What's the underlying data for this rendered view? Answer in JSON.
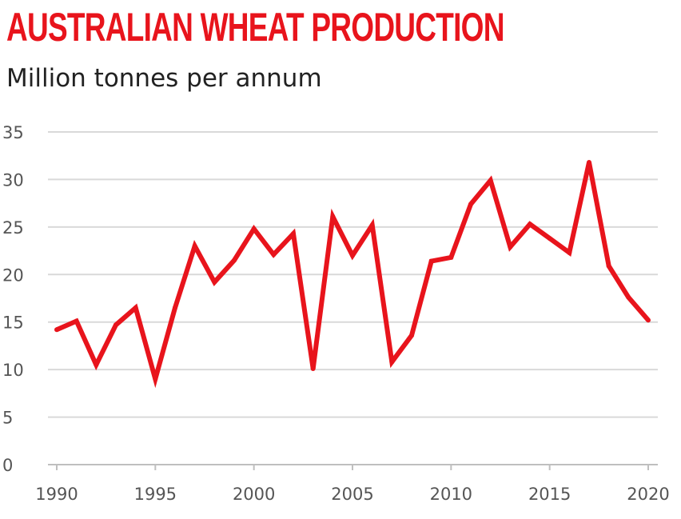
{
  "chart_data": {
    "type": "line",
    "title": "AUSTRALIAN WHEAT PRODUCTION",
    "subtitle": "Million tonnes per annum",
    "xlabel": "",
    "ylabel": "",
    "xlim": [
      1990,
      2020
    ],
    "ylim": [
      0,
      35
    ],
    "x_ticks": [
      1990,
      1995,
      2000,
      2005,
      2010,
      2015,
      2020
    ],
    "y_ticks": [
      0,
      5,
      10,
      15,
      20,
      25,
      30,
      35
    ],
    "grid": "horizontal",
    "legend": "none",
    "line_color": "#e8141c",
    "grid_color": "#d9d9d9",
    "series": [
      {
        "x": [
          1990,
          1991,
          1992,
          1993,
          1994,
          1995,
          1996,
          1997,
          1998,
          1999,
          2000,
          2001,
          2002,
          2003,
          2004,
          2005,
          2006,
          2007,
          2008,
          2009,
          2010,
          2011,
          2012,
          2013,
          2014,
          2015,
          2016,
          2017,
          2018,
          2019,
          2020
        ],
        "values": [
          14.2,
          15.1,
          10.5,
          14.7,
          16.5,
          9.0,
          16.5,
          23.0,
          19.2,
          21.5,
          24.8,
          22.1,
          24.3,
          10.1,
          26.1,
          22.0,
          25.2,
          10.8,
          13.6,
          21.4,
          21.8,
          27.4,
          29.9,
          22.9,
          25.3,
          23.8,
          22.3,
          31.8,
          20.9,
          17.6,
          15.2
        ]
      }
    ]
  }
}
